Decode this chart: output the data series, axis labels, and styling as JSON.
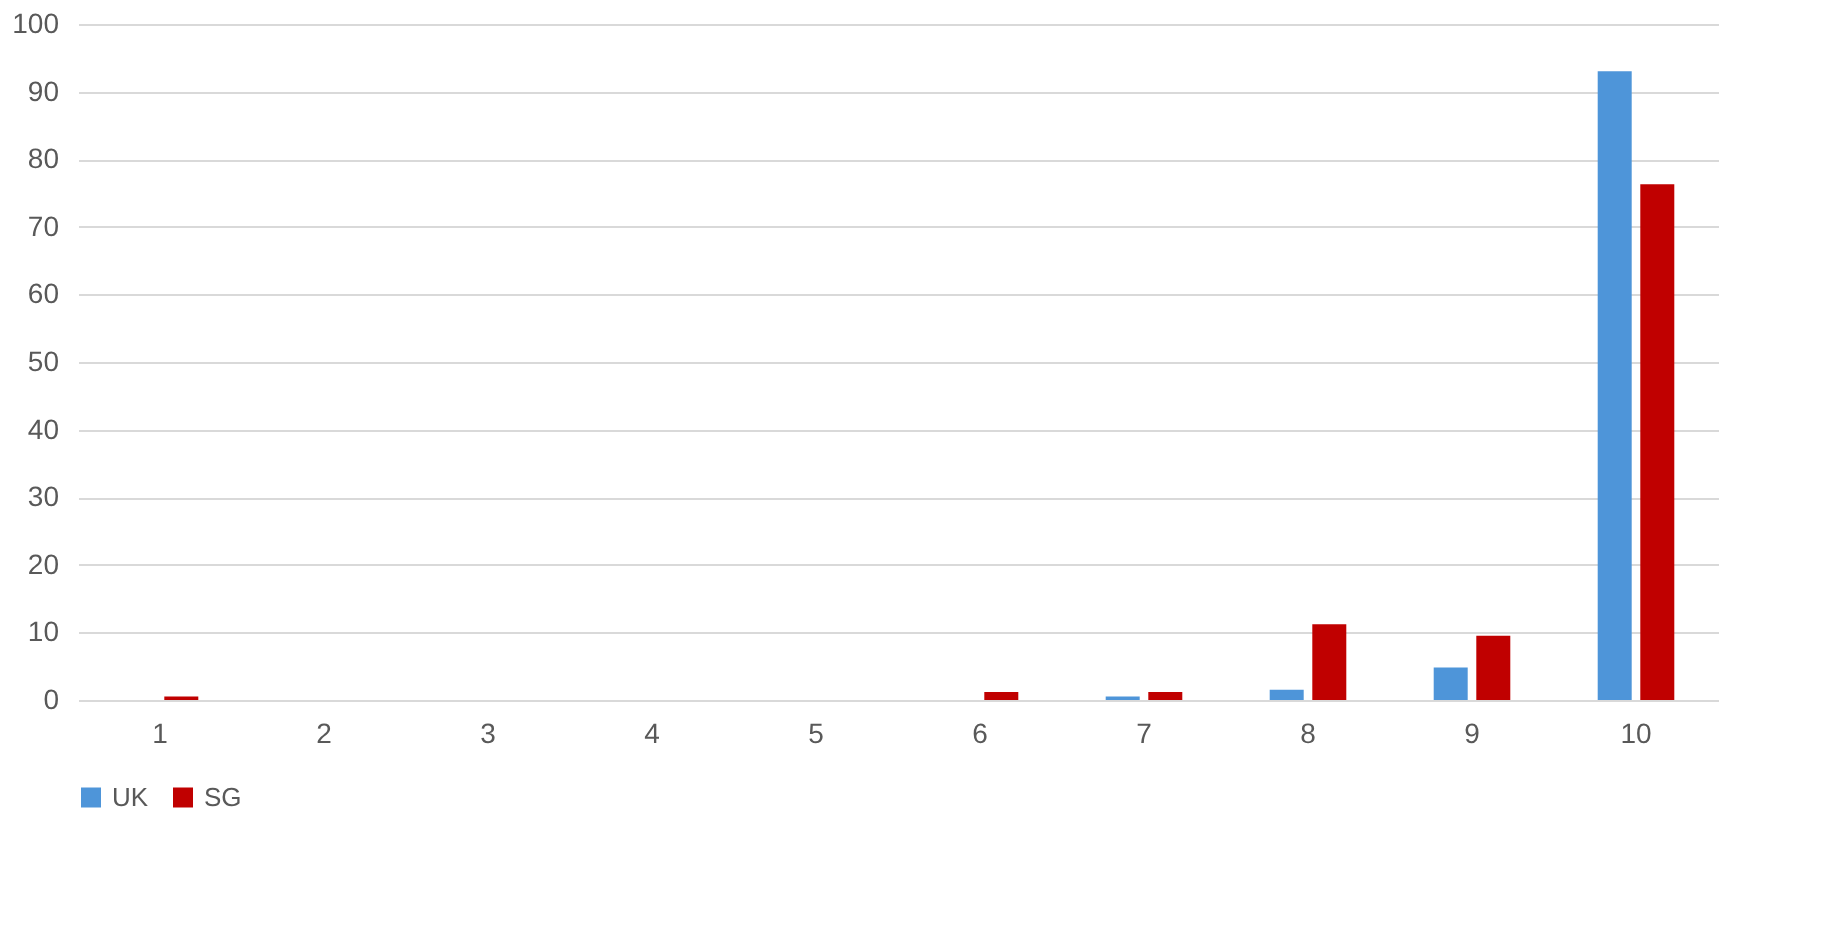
{
  "chart_data": {
    "type": "bar",
    "categories": [
      "1",
      "2",
      "3",
      "4",
      "5",
      "6",
      "7",
      "8",
      "9",
      "10"
    ],
    "series": [
      {
        "name": "UK",
        "color": "#4e95d9",
        "values": [
          0,
          0,
          0,
          0,
          0,
          0,
          0.5,
          1.5,
          4.8,
          93
        ]
      },
      {
        "name": "SG",
        "color": "#c00000",
        "values": [
          0.5,
          0,
          0,
          0,
          0,
          1.2,
          1.2,
          11.2,
          9.5,
          76.3
        ]
      }
    ],
    "ylim": [
      0,
      100
    ],
    "yticks": [
      0,
      10,
      20,
      30,
      40,
      50,
      60,
      70,
      80,
      90,
      100
    ],
    "grid": "y",
    "legend": "bottom"
  }
}
